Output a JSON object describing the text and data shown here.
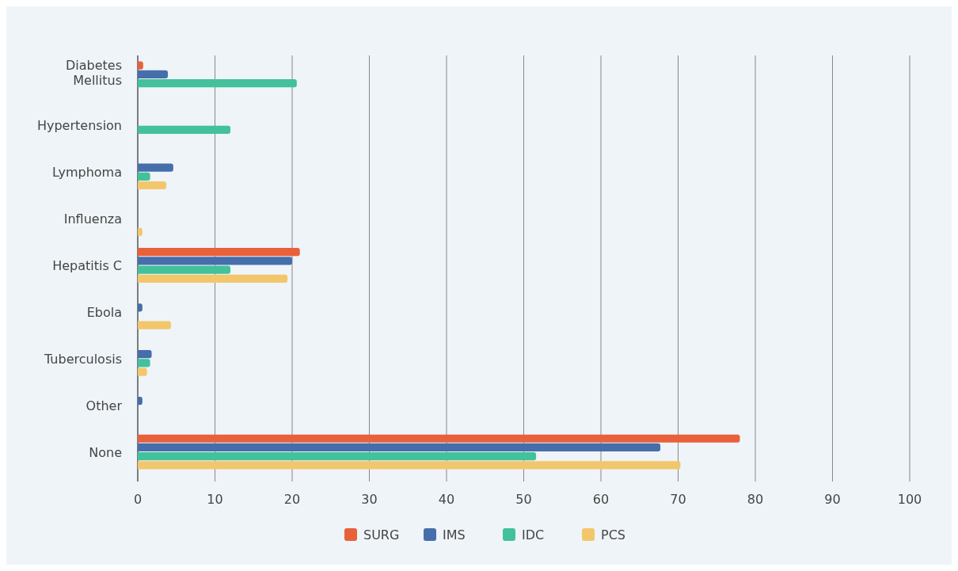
{
  "chart_data": {
    "type": "bar",
    "orientation": "horizontal",
    "categories": [
      "Diabetes Mellitus",
      "Hypertension",
      "Lymphoma",
      "Influenza",
      "Hepatitis C",
      "Ebola",
      "Tuberculosis",
      "Other",
      "None"
    ],
    "series": [
      {
        "name": "SURG",
        "color": "#e8613a",
        "values": [
          0.7,
          null,
          null,
          null,
          21.0,
          null,
          null,
          null,
          78.0
        ]
      },
      {
        "name": "IMS",
        "color": "#456eab",
        "values": [
          3.9,
          null,
          4.6,
          null,
          20.0,
          0.6,
          1.8,
          0.6,
          67.7
        ]
      },
      {
        "name": "IDC",
        "color": "#42c19a",
        "values": [
          20.6,
          12.0,
          1.6,
          null,
          12.0,
          null,
          1.6,
          null,
          51.6
        ]
      },
      {
        "name": "PCS",
        "color": "#f2c76c",
        "values": [
          null,
          null,
          3.7,
          0.6,
          19.4,
          4.3,
          1.2,
          null,
          70.3
        ]
      }
    ],
    "xlim": [
      0,
      100
    ],
    "xticks": [
      0,
      10,
      20,
      30,
      40,
      50,
      60,
      70,
      80,
      90,
      100
    ],
    "grid": "x",
    "legend": "bottom"
  }
}
